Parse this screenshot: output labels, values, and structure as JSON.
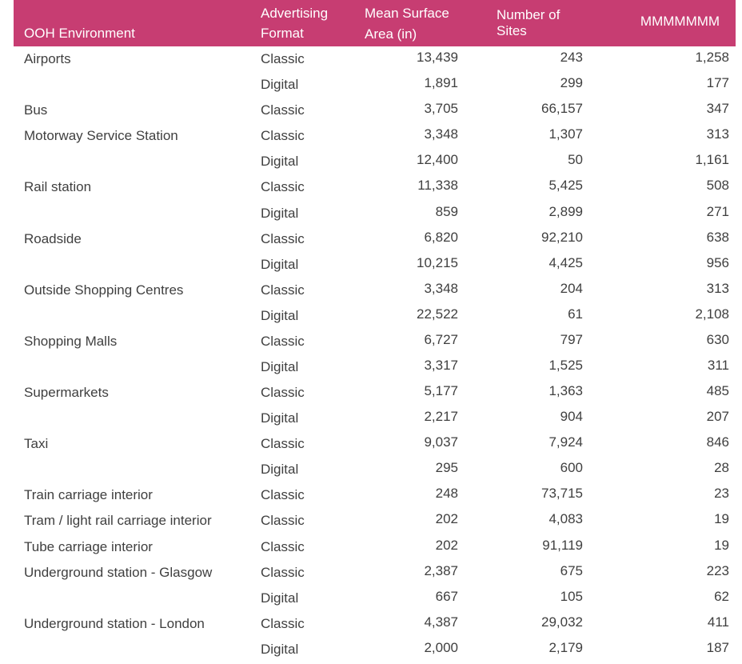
{
  "colors": {
    "header_bg": "#C73D72",
    "header_text": "#FFFFFF",
    "body_text": "#3F3F3F",
    "body_bg": "#FFFFFF"
  },
  "header": {
    "columns": [
      {
        "id": "environment",
        "label": "OOH Environment"
      },
      {
        "id": "format",
        "label": "Advertising Format"
      },
      {
        "id": "mean_surface_area_in",
        "label": "Mean Surface Area (in)"
      },
      {
        "id": "number_of_sites",
        "label": "Number of Sites"
      },
      {
        "id": "mmmmmmm",
        "label": "MMMMMMM"
      }
    ]
  },
  "chart_data": {
    "type": "table",
    "title": "",
    "columns": [
      "OOH Environment",
      "Advertising Format",
      "Mean Surface Area (in)",
      "Number of Sites",
      "MMMMMMM"
    ],
    "rows": [
      {
        "environment": "Airports",
        "format": "Classic",
        "mean_surface_area_in": 13439,
        "number_of_sites": 243,
        "mmmmmmm": 1258
      },
      {
        "environment": "",
        "format": "Digital",
        "mean_surface_area_in": 1891,
        "number_of_sites": 299,
        "mmmmmmm": 177
      },
      {
        "environment": "Bus",
        "format": "Classic",
        "mean_surface_area_in": 3705,
        "number_of_sites": 66157,
        "mmmmmmm": 347
      },
      {
        "environment": "Motorway Service Station",
        "format": "Classic",
        "mean_surface_area_in": 3348,
        "number_of_sites": 1307,
        "mmmmmmm": 313
      },
      {
        "environment": "",
        "format": "Digital",
        "mean_surface_area_in": 12400,
        "number_of_sites": 50,
        "mmmmmmm": 1161
      },
      {
        "environment": "Rail station",
        "format": "Classic",
        "mean_surface_area_in": 11338,
        "number_of_sites": 5425,
        "mmmmmmm": 508
      },
      {
        "environment": "",
        "format": "Digital",
        "mean_surface_area_in": 859,
        "number_of_sites": 2899,
        "mmmmmmm": 271
      },
      {
        "environment": "Roadside",
        "format": "Classic",
        "mean_surface_area_in": 6820,
        "number_of_sites": 92210,
        "mmmmmmm": 638
      },
      {
        "environment": "",
        "format": "Digital",
        "mean_surface_area_in": 10215,
        "number_of_sites": 4425,
        "mmmmmmm": 956
      },
      {
        "environment": "Outside Shopping Centres",
        "format": "Classic",
        "mean_surface_area_in": 3348,
        "number_of_sites": 204,
        "mmmmmmm": 313
      },
      {
        "environment": "",
        "format": "Digital",
        "mean_surface_area_in": 22522,
        "number_of_sites": 61,
        "mmmmmmm": 2108
      },
      {
        "environment": "Shopping Malls",
        "format": "Classic",
        "mean_surface_area_in": 6727,
        "number_of_sites": 797,
        "mmmmmmm": 630
      },
      {
        "environment": "",
        "format": "Digital",
        "mean_surface_area_in": 3317,
        "number_of_sites": 1525,
        "mmmmmmm": 311
      },
      {
        "environment": "Supermarkets",
        "format": "Classic",
        "mean_surface_area_in": 5177,
        "number_of_sites": 1363,
        "mmmmmmm": 485
      },
      {
        "environment": "",
        "format": "Digital",
        "mean_surface_area_in": 2217,
        "number_of_sites": 904,
        "mmmmmmm": 207
      },
      {
        "environment": "Taxi",
        "format": "Classic",
        "mean_surface_area_in": 9037,
        "number_of_sites": 7924,
        "mmmmmmm": 846
      },
      {
        "environment": "",
        "format": "Digital",
        "mean_surface_area_in": 295,
        "number_of_sites": 600,
        "mmmmmmm": 28
      },
      {
        "environment": "Train carriage interior",
        "format": "Classic",
        "mean_surface_area_in": 248,
        "number_of_sites": 73715,
        "mmmmmmm": 23
      },
      {
        "environment": "Tram / light rail carriage interior",
        "format": "Classic",
        "mean_surface_area_in": 202,
        "number_of_sites": 4083,
        "mmmmmmm": 19
      },
      {
        "environment": "Tube carriage interior",
        "format": "Classic",
        "mean_surface_area_in": 202,
        "number_of_sites": 91119,
        "mmmmmmm": 19
      },
      {
        "environment": "Underground station - Glasgow",
        "format": "Classic",
        "mean_surface_area_in": 2387,
        "number_of_sites": 675,
        "mmmmmmm": 223
      },
      {
        "environment": "",
        "format": "Digital",
        "mean_surface_area_in": 667,
        "number_of_sites": 105,
        "mmmmmmm": 62
      },
      {
        "environment": "Underground station - London",
        "format": "Classic",
        "mean_surface_area_in": 4387,
        "number_of_sites": 29032,
        "mmmmmmm": 411
      },
      {
        "environment": "",
        "format": "Digital",
        "mean_surface_area_in": 2000,
        "number_of_sites": 2179,
        "mmmmmmm": 187
      }
    ]
  }
}
